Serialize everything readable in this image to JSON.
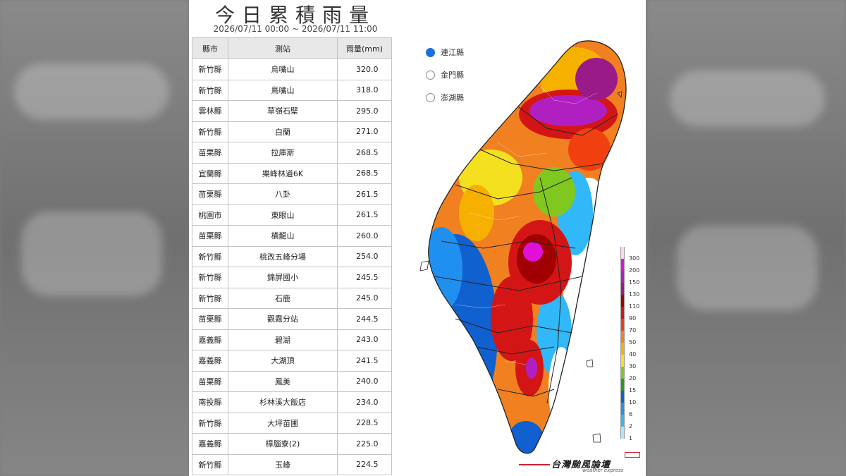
{
  "title": "今日累積雨量",
  "time_range": "2026/07/11 00:00 ~ 2026/07/11 11:00",
  "table": {
    "headers": [
      "縣市",
      "測站",
      "雨量(mm)"
    ],
    "rows": [
      {
        "county": "新竹縣",
        "station": "烏嘴山",
        "value": "320.0"
      },
      {
        "county": "新竹縣",
        "station": "鳥嘴山",
        "value": "318.0"
      },
      {
        "county": "雲林縣",
        "station": "草嶺石壁",
        "value": "295.0"
      },
      {
        "county": "新竹縣",
        "station": "白蘭",
        "value": "271.0"
      },
      {
        "county": "苗栗縣",
        "station": "拉庫斯",
        "value": "268.5"
      },
      {
        "county": "宜蘭縣",
        "station": "樂峰林道6K",
        "value": "268.5"
      },
      {
        "county": "苗栗縣",
        "station": "八卦",
        "value": "261.5"
      },
      {
        "county": "桃園市",
        "station": "東眼山",
        "value": "261.5"
      },
      {
        "county": "苗栗縣",
        "station": "橫龍山",
        "value": "260.0"
      },
      {
        "county": "新竹縣",
        "station": "桃改五峰分場",
        "value": "254.0"
      },
      {
        "county": "新竹縣",
        "station": "錦屏國小",
        "value": "245.5"
      },
      {
        "county": "新竹縣",
        "station": "石鹿",
        "value": "245.0"
      },
      {
        "county": "苗栗縣",
        "station": "觀霧分站",
        "value": "244.5"
      },
      {
        "county": "嘉義縣",
        "station": "碧湖",
        "value": "243.0"
      },
      {
        "county": "嘉義縣",
        "station": "大湖頂",
        "value": "241.5"
      },
      {
        "county": "苗栗縣",
        "station": "鳳美",
        "value": "240.0"
      },
      {
        "county": "南投縣",
        "station": "杉林溪大飯店",
        "value": "234.0"
      },
      {
        "county": "新竹縣",
        "station": "大坪苗圃",
        "value": "228.5"
      },
      {
        "county": "嘉義縣",
        "station": "樟腦寮(2)",
        "value": "225.0"
      },
      {
        "county": "新竹縣",
        "station": "玉峰",
        "value": "224.5"
      }
    ]
  },
  "island_options": [
    {
      "label": "連江縣",
      "selected": true
    },
    {
      "label": "金門縣",
      "selected": false
    },
    {
      "label": "澎湖縣",
      "selected": false
    }
  ],
  "legend": {
    "labels": [
      "300",
      "200",
      "150",
      "130",
      "110",
      "90",
      "70",
      "50",
      "40",
      "30",
      "20",
      "15",
      "10",
      "6",
      "2",
      "1"
    ],
    "colors": [
      "#fdd5f5",
      "#e010d8",
      "#b020c0",
      "#9a1a8a",
      "#a00000",
      "#d41515",
      "#f04010",
      "#f08020",
      "#f5b000",
      "#f5e020",
      "#80c820",
      "#20a020",
      "#1060d0",
      "#2090f0",
      "#30b8f8",
      "#a8e8fb"
    ]
  },
  "brand": {
    "name": "台灣颱風論壇",
    "subtitle": "weather express"
  }
}
